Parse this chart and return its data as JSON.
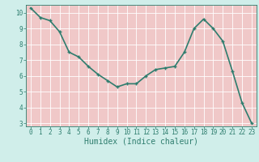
{
  "x": [
    0,
    1,
    2,
    3,
    4,
    5,
    6,
    7,
    8,
    9,
    10,
    11,
    12,
    13,
    14,
    15,
    16,
    17,
    18,
    19,
    20,
    21,
    22,
    23
  ],
  "y": [
    10.3,
    9.7,
    9.5,
    8.8,
    7.5,
    7.2,
    6.6,
    6.1,
    5.7,
    5.3,
    5.5,
    5.5,
    6.0,
    6.4,
    6.5,
    6.6,
    7.5,
    9.0,
    9.6,
    9.0,
    8.2,
    6.3,
    4.3,
    3.0
  ],
  "xlabel": "Humidex (Indice chaleur)",
  "xlim": [
    -0.5,
    23.5
  ],
  "ylim": [
    2.8,
    10.5
  ],
  "yticks": [
    3,
    4,
    5,
    6,
    7,
    8,
    9,
    10
  ],
  "xticks": [
    0,
    1,
    2,
    3,
    4,
    5,
    6,
    7,
    8,
    9,
    10,
    11,
    12,
    13,
    14,
    15,
    16,
    17,
    18,
    19,
    20,
    21,
    22,
    23
  ],
  "line_color": "#2e7d6e",
  "bg_color": "#d0eeea",
  "grid_color": "#ffffff",
  "axis_bg": "#f0c8c8",
  "tick_color": "#2e7d6e",
  "xlabel_color": "#2e7d6e",
  "line_width": 1.2,
  "marker_size": 3.5,
  "tick_fontsize": 5.5,
  "xlabel_fontsize": 7.0
}
